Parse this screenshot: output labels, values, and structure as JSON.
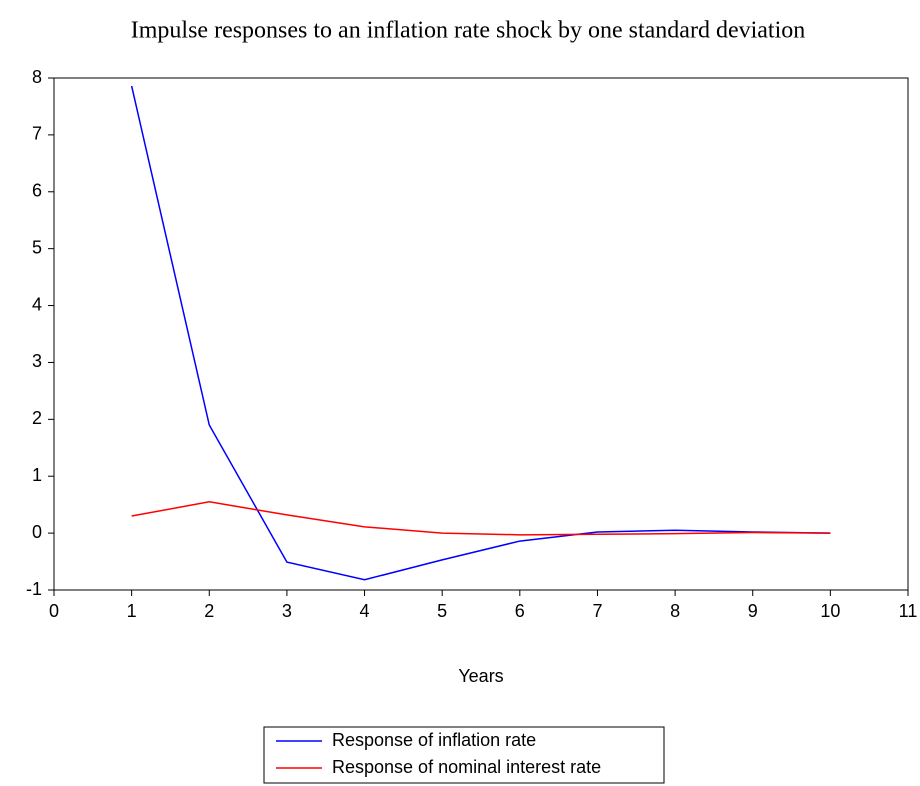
{
  "chart_data": {
    "type": "line",
    "title": "Impulse responses to an inflation rate shock by one standard deviation",
    "x_label": "Years",
    "x": [
      1,
      2,
      3,
      4,
      5,
      6,
      7,
      8,
      9,
      10
    ],
    "series": [
      {
        "name": "Response of inflation rate",
        "color": "#0000ff",
        "values": [
          7.86,
          1.9,
          -0.51,
          -0.82,
          -0.47,
          -0.14,
          0.02,
          0.05,
          0.02,
          0.0
        ]
      },
      {
        "name": "Response of nominal interest rate",
        "color": "#ff0000",
        "values": [
          0.3,
          0.55,
          0.32,
          0.11,
          0.0,
          -0.03,
          -0.02,
          -0.01,
          0.01,
          0.0
        ]
      }
    ],
    "xlim": [
      0,
      11
    ],
    "xticks": [
      0,
      1,
      2,
      3,
      4,
      5,
      6,
      7,
      8,
      9,
      10,
      11
    ],
    "ylim": [
      -1,
      8
    ],
    "yticks": [
      -1,
      0,
      1,
      2,
      3,
      4,
      5,
      6,
      7,
      8
    ]
  }
}
